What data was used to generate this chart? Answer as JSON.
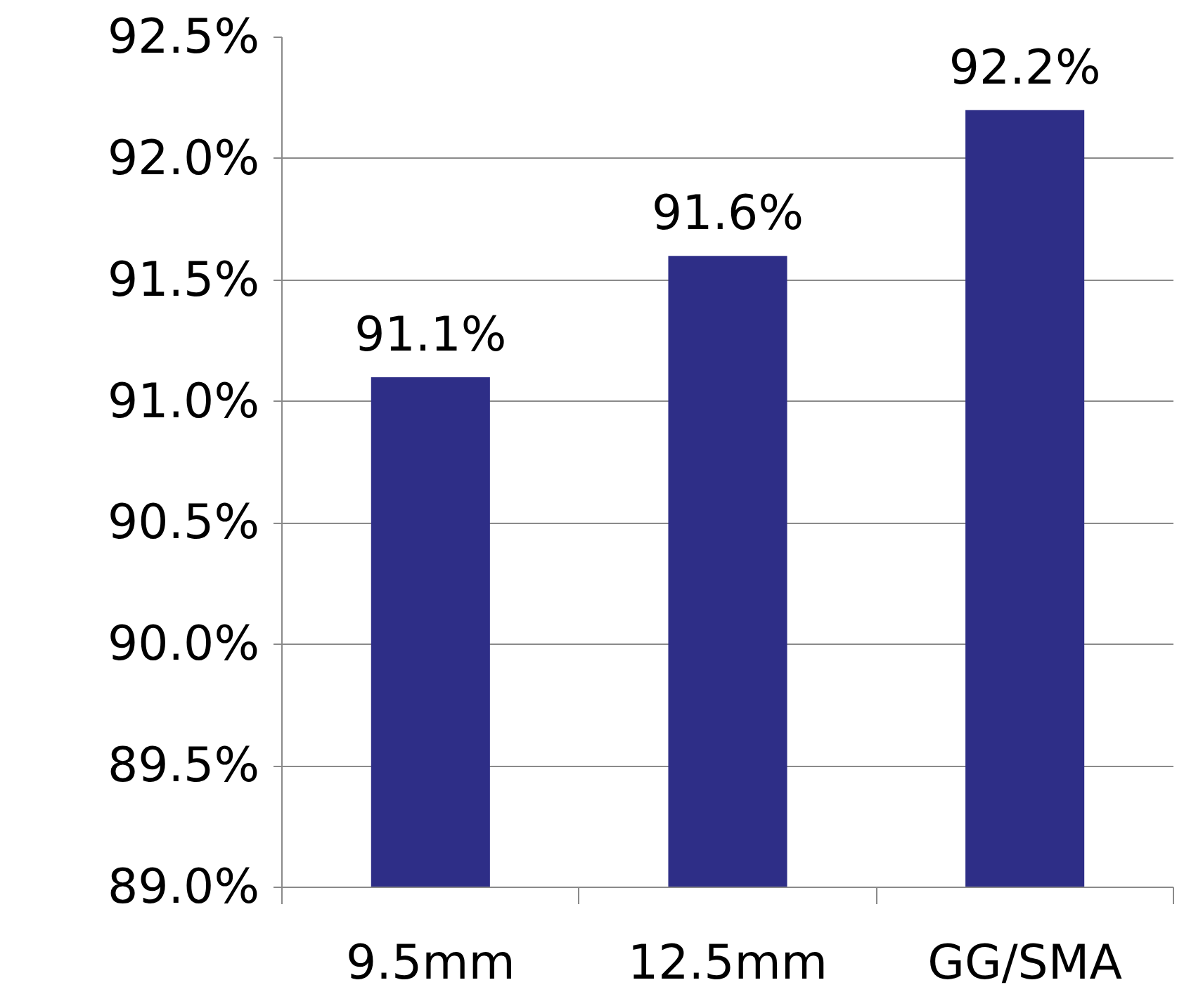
{
  "chart_data": {
    "type": "bar",
    "categories": [
      "9.5mm",
      "12.5mm",
      "GG/SMA"
    ],
    "values": [
      91.1,
      91.6,
      92.2
    ],
    "value_labels": [
      "91.1%",
      "91.6%",
      "92.2%"
    ],
    "color": "#2e2e87",
    "ylim": [
      89.0,
      92.5
    ],
    "yticks": [
      {
        "value": 89.0,
        "label": "89.0%"
      },
      {
        "value": 89.5,
        "label": "89.5%"
      },
      {
        "value": 90.0,
        "label": "90.0%"
      },
      {
        "value": 90.5,
        "label": "90.5%"
      },
      {
        "value": 91.0,
        "label": "91.0%"
      },
      {
        "value": 91.5,
        "label": "91.5%"
      },
      {
        "value": 92.0,
        "label": "92.0%"
      },
      {
        "value": 92.5,
        "label": "92.5%"
      }
    ],
    "grid": "y"
  }
}
